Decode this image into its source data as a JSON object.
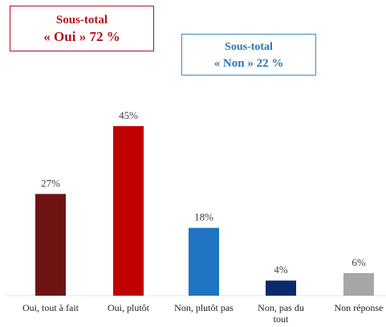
{
  "subtotals": {
    "yes": {
      "title": "Sous-total",
      "value": "« Oui » 72 %",
      "color": "#b3121b"
    },
    "no": {
      "title": "Sous-total",
      "value": "« Non » 22 %",
      "color": "#2a77b5"
    }
  },
  "chart_data": {
    "type": "bar",
    "title": "",
    "xlabel": "",
    "ylabel": "",
    "ylim": [
      0,
      45
    ],
    "grid": false,
    "categories": [
      [
        "Oui, tout à fait"
      ],
      [
        "Oui, plutôt"
      ],
      [
        "Non, plutôt pas"
      ],
      [
        "Non, pas du",
        "tout"
      ],
      [
        "Non réponse"
      ]
    ],
    "values": [
      27,
      45,
      18,
      4,
      6
    ],
    "value_labels": [
      "27%",
      "45%",
      "18%",
      "4%",
      "6%"
    ],
    "colors": [
      "#6e1514",
      "#c00000",
      "#1f74c4",
      "#0b2a6b",
      "#a6a6a6"
    ]
  }
}
